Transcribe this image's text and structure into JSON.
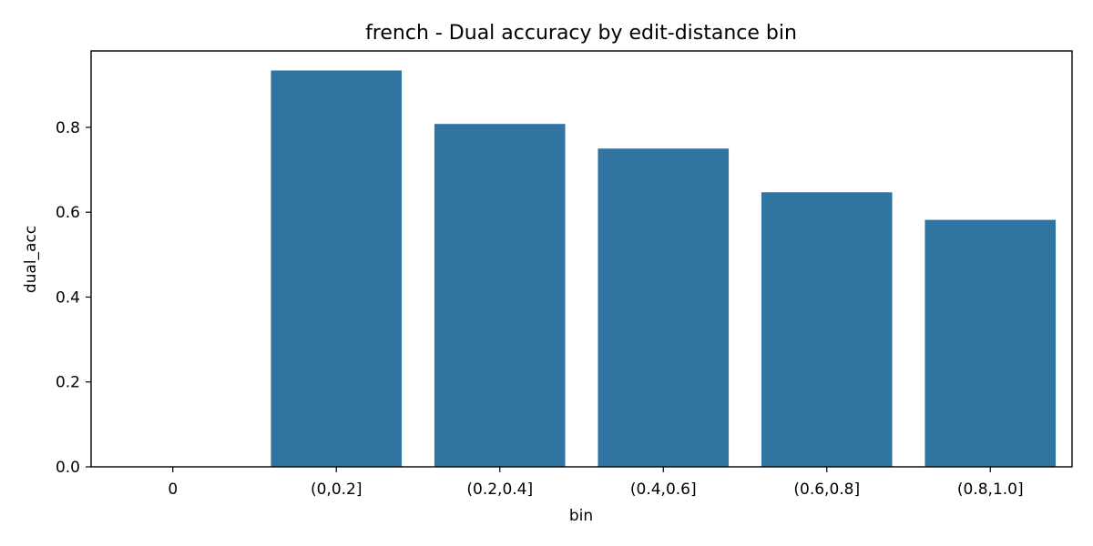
{
  "chart_data": {
    "type": "bar",
    "title": "french - Dual accuracy by edit-distance bin",
    "xlabel": "bin",
    "ylabel": "dual_acc",
    "categories": [
      "0",
      "(0,0.2]",
      "(0.2,0.4]",
      "(0.4,0.6]",
      "(0.6,0.8]",
      "(0.8,1.0]"
    ],
    "values": [
      0.0,
      0.934,
      0.808,
      0.75,
      0.647,
      0.582
    ],
    "ylim": [
      0,
      0.98
    ],
    "yticks": [
      0.0,
      0.2,
      0.4,
      0.6,
      0.8
    ],
    "ytick_labels": [
      "0.0",
      "0.2",
      "0.4",
      "0.6",
      "0.8"
    ],
    "bar_color": "#3274a1",
    "grid": false,
    "legend": "none"
  }
}
